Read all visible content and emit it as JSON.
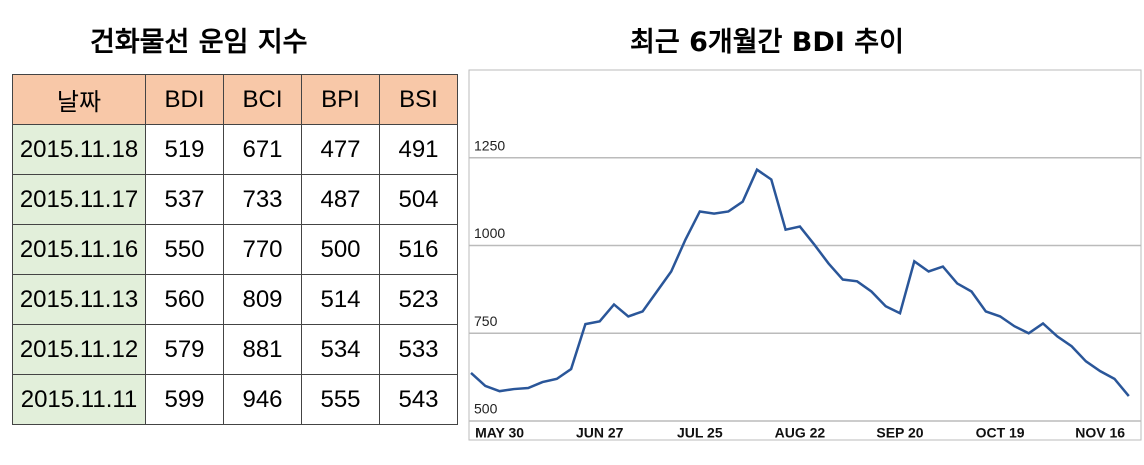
{
  "table": {
    "title": "건화물선 운임 지수",
    "header": [
      "날짜",
      "BDI",
      "BCI",
      "BPI",
      "BSI"
    ],
    "rows": [
      [
        "2015.11.18",
        "519",
        "671",
        "477",
        "491"
      ],
      [
        "2015.11.17",
        "537",
        "733",
        "487",
        "504"
      ],
      [
        "2015.11.16",
        "550",
        "770",
        "500",
        "516"
      ],
      [
        "2015.11.13",
        "560",
        "809",
        "514",
        "523"
      ],
      [
        "2015.11.12",
        "579",
        "881",
        "534",
        "533"
      ],
      [
        "2015.11.11",
        "599",
        "946",
        "555",
        "543"
      ]
    ]
  },
  "chart_data": {
    "type": "line",
    "title": "최근 6개월간 BDI 추이",
    "categories": [
      null,
      null,
      "MAY 30",
      null,
      null,
      null,
      null,
      null,
      null,
      "JUN 27",
      null,
      null,
      null,
      null,
      null,
      null,
      "JUL 25",
      null,
      null,
      null,
      null,
      null,
      null,
      "AUG 22",
      null,
      null,
      null,
      null,
      null,
      null,
      "SEP 20",
      null,
      null,
      null,
      null,
      null,
      null,
      "OCT 19",
      null,
      null,
      null,
      null,
      null,
      null,
      "NOV 16",
      null,
      null
    ],
    "series": [
      {
        "name": "BDI",
        "color": "#2a5699",
        "values": [
          637,
          600,
          585,
          591,
          594,
          611,
          620,
          648,
          776,
          784,
          832,
          798,
          812,
          869,
          926,
          1017,
          1097,
          1091,
          1097,
          1125,
          1216,
          1188,
          1045,
          1054,
          1003,
          949,
          903,
          898,
          869,
          827,
          807,
          955,
          926,
          940,
          892,
          869,
          812,
          798,
          770,
          750,
          778,
          741,
          713,
          670,
          642,
          620,
          571
        ]
      }
    ],
    "ylim": [
      500,
      1500
    ],
    "yticks": [
      500,
      750,
      1000,
      1250
    ],
    "grid": true
  }
}
